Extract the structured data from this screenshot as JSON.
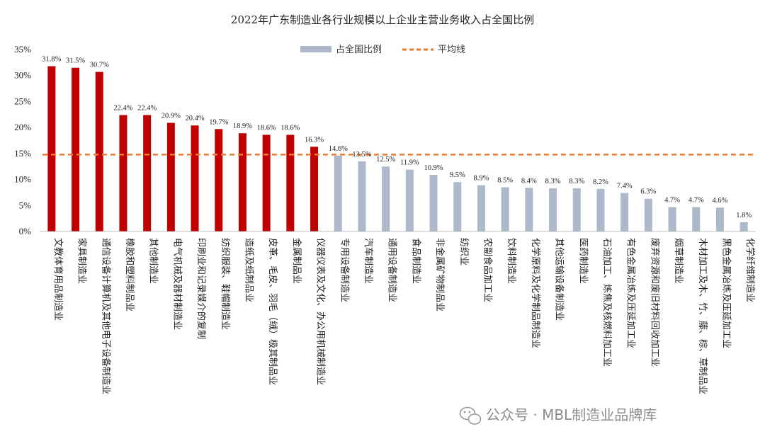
{
  "chart_data": {
    "type": "bar",
    "title": "2022年广东制造业各行业规模以上企业主营业务收入占全国比例",
    "series": [
      {
        "name": "占全国比例",
        "type": "bar"
      },
      {
        "name": "平均线",
        "type": "line",
        "value": 14.8
      }
    ],
    "categories": [
      "文教体育用品制造业",
      "家具制造业",
      "通信设备计算机及其他电子设备制造业",
      "橡胶和塑料制品业",
      "其他制造业",
      "电气机械及器材制造业",
      "印刷业和记录媒介的复制",
      "纺织服装、鞋帽制造业",
      "造纸及纸制品业",
      "皮革、毛皮、羽毛（绒）极其制品业",
      "金属制品业",
      "仪器仪表及文化、办公用机械制造业",
      "专用设备制造业",
      "汽车制造业",
      "通用设备制造业",
      "食品制造业",
      "非金属矿物制品业",
      "纺织业",
      "农副食品加工业",
      "饮料制造业",
      "化学原料及化学制品制造业",
      "其他运输设备制造业",
      "医药制造业",
      "石油加工、炼焦及核燃料加工业",
      "有色金属冶炼及压延加工业",
      "废弃资源和废旧材料回收加工业",
      "烟草制造业",
      "木材加工及木、竹、藤、棕、草制品业",
      "黑色金属冶炼及压延加工业",
      "化学纤维制造业"
    ],
    "values": [
      31.8,
      31.5,
      30.7,
      22.4,
      22.4,
      20.9,
      20.4,
      19.7,
      18.9,
      18.6,
      18.6,
      16.3,
      14.6,
      13.5,
      12.5,
      11.9,
      10.9,
      9.5,
      8.9,
      8.5,
      8.4,
      8.3,
      8.3,
      8.2,
      7.4,
      6.3,
      4.7,
      4.7,
      4.6,
      1.8
    ],
    "data_labels": [
      "31.8%",
      "31.5%",
      "30.7%",
      "22.4%",
      "22.4%",
      "20.9%",
      "20.4%",
      "19.7%",
      "18.9%",
      "18.6%",
      "18.6%",
      "16.3%",
      "14.6%",
      "13.5%",
      "12.5%",
      "11.9%",
      "10.9%",
      "9.5%",
      "8.9%",
      "8.5%",
      "8.4%",
      "8.3%",
      "8.3%",
      "8.2%",
      "7.4%",
      "6.3%",
      "4.7%",
      "4.7%",
      "4.6%",
      "1.8%"
    ],
    "ylim": [
      0,
      35
    ],
    "yticks": [
      "0%",
      "5%",
      "10%",
      "15%",
      "20%",
      "25%",
      "30%",
      "35%"
    ],
    "highlight_above_average": true,
    "colors": {
      "above": "#c00000",
      "below": "#adb9ca",
      "average": "#ed7d31"
    },
    "legend": {
      "bar_label": "占全国比例",
      "line_label": "平均线",
      "position": "top-center"
    },
    "grid": false
  },
  "watermark": {
    "icon": "wechat-icon",
    "text": "公众号 · MBL制造业品牌库"
  }
}
